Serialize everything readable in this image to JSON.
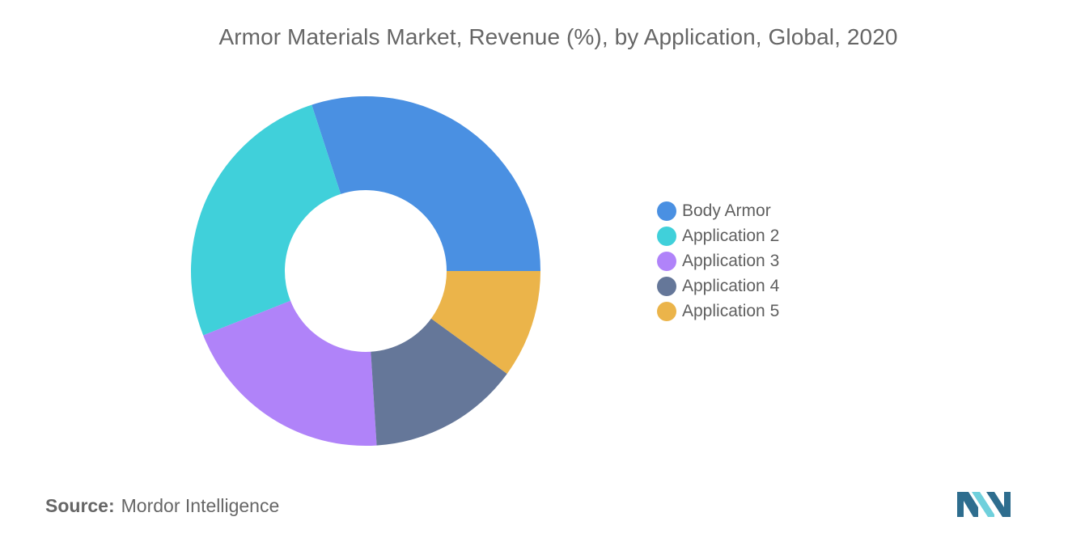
{
  "chart_data": {
    "type": "pie",
    "style": "donut",
    "title": "Armor Materials Market, Revenue (%), by Application, Global, 2020",
    "categories": [
      "Body Armor",
      "Application 2",
      "Application 3",
      "Application 4",
      "Application 5"
    ],
    "values": [
      30,
      26,
      20,
      14,
      10
    ],
    "colors": [
      "#4a90e2",
      "#40d0da",
      "#b083f9",
      "#657799",
      "#ebb44a"
    ],
    "legend_position": "right"
  },
  "source": {
    "label": "Source:",
    "text": "Mordor Intelligence"
  },
  "logo": {
    "icon": "mordor-intelligence-logo-icon",
    "colors": [
      "#2e6d8e",
      "#6fd0dc"
    ]
  }
}
